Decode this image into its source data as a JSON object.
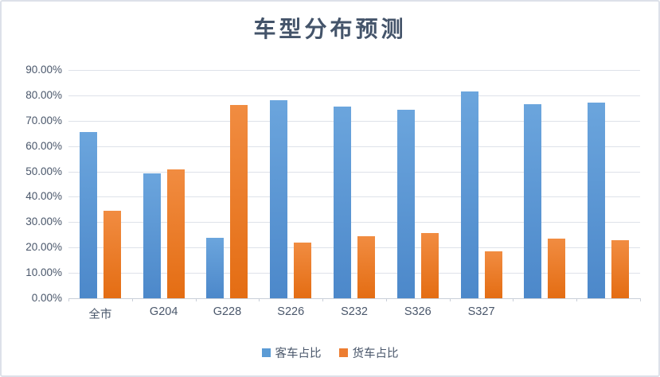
{
  "title": "车型分布预测",
  "colors": {
    "passenger_blue": "#5B9BD5",
    "truck_orange": "#ED7D31",
    "title_text": "#44546A",
    "axis_text": "#4A576B",
    "gridline": "#DEE2E9",
    "axis_line": "#C9CFD8",
    "frame_border": "#DDE1E9"
  },
  "chart_data": {
    "type": "bar",
    "title": "车型分布预测",
    "categories": [
      "全市",
      "G204",
      "G228",
      "S226",
      "S232",
      "S326",
      "S327",
      "",
      ""
    ],
    "series": [
      {
        "name": "客车占比",
        "color": "#5B9BD5",
        "values": [
          65.5,
          49.2,
          23.8,
          78.0,
          75.5,
          74.3,
          81.5,
          76.5,
          77.0
        ]
      },
      {
        "name": "货车占比",
        "color": "#ED7D31",
        "values": [
          34.5,
          50.8,
          76.2,
          22.0,
          24.5,
          25.8,
          18.5,
          23.5,
          23.0
        ]
      }
    ],
    "ylim": [
      0,
      90
    ],
    "ytick_step": 10,
    "yticks": [
      "0.00%",
      "10.00%",
      "20.00%",
      "30.00%",
      "40.00%",
      "50.00%",
      "60.00%",
      "70.00%",
      "80.00%",
      "90.00%"
    ],
    "xlabel": "",
    "ylabel": "",
    "grid": true,
    "legend_position": "bottom"
  }
}
